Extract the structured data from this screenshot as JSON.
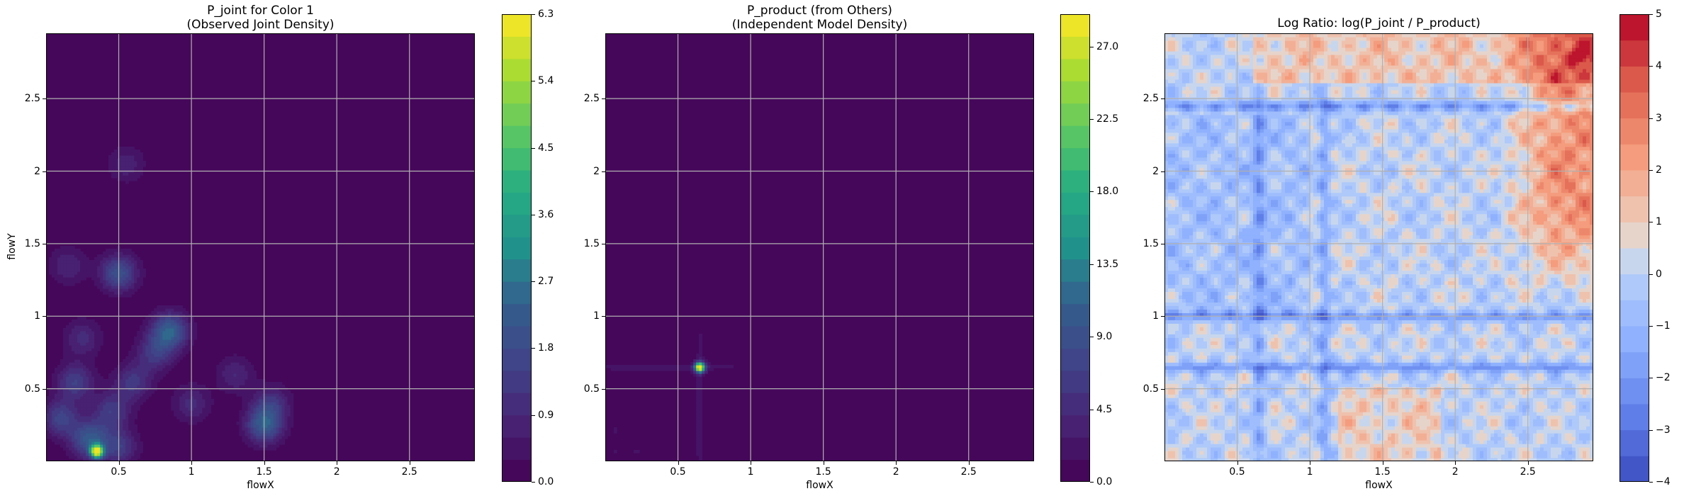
{
  "chart_data": [
    {
      "type": "heatmap",
      "title_lines": [
        "P_joint for Color 1",
        "(Observed Joint Density)"
      ],
      "xlabel": "flowX",
      "ylabel": "flowY",
      "xlim": [
        0.0,
        2.95
      ],
      "ylim": [
        0.0,
        2.95
      ],
      "xticks": [
        0.5,
        1.0,
        1.5,
        2.0,
        2.5
      ],
      "yticks": [
        0.5,
        1.0,
        1.5,
        2.0,
        2.5
      ],
      "grid": true,
      "colormap": "viridis",
      "colorbar": {
        "range": [
          0.0,
          6.3
        ],
        "ticks": [
          "0.0",
          "0.9",
          "1.8",
          "2.7",
          "3.6",
          "4.5",
          "5.4",
          "6.3"
        ],
        "levels": 21
      },
      "background_value": 0.0,
      "hotspots": [
        {
          "x": 0.35,
          "y": 0.07,
          "value": 6.0
        },
        {
          "x": 0.3,
          "y": 0.15,
          "value": 2.2
        },
        {
          "x": 0.5,
          "y": 0.1,
          "value": 1.4
        },
        {
          "x": 0.5,
          "y": 1.3,
          "value": 2.0
        },
        {
          "x": 0.85,
          "y": 0.9,
          "value": 2.4
        },
        {
          "x": 0.75,
          "y": 0.75,
          "value": 1.3
        },
        {
          "x": 1.5,
          "y": 0.25,
          "value": 2.2
        },
        {
          "x": 1.55,
          "y": 0.4,
          "value": 1.2
        },
        {
          "x": 0.2,
          "y": 0.55,
          "value": 1.5
        },
        {
          "x": 0.1,
          "y": 0.3,
          "value": 1.6
        },
        {
          "x": 0.6,
          "y": 0.55,
          "value": 1.3
        },
        {
          "x": 0.25,
          "y": 0.85,
          "value": 1.0
        },
        {
          "x": 1.3,
          "y": 0.6,
          "value": 0.9
        },
        {
          "x": 0.55,
          "y": 2.05,
          "value": 0.8
        },
        {
          "x": 0.15,
          "y": 1.35,
          "value": 0.9
        },
        {
          "x": 1.0,
          "y": 0.4,
          "value": 1.0
        },
        {
          "x": 0.45,
          "y": 0.35,
          "value": 1.4
        }
      ]
    },
    {
      "type": "heatmap",
      "title_lines": [
        "P_product (from Others)",
        "(Independent Model Density)"
      ],
      "xlabel": "flowX",
      "ylabel": "",
      "xlim": [
        0.0,
        2.95
      ],
      "ylim": [
        0.0,
        2.95
      ],
      "xticks": [
        0.5,
        1.0,
        1.5,
        2.0,
        2.5
      ],
      "yticks": [
        0.5,
        1.0,
        1.5,
        2.0,
        2.5
      ],
      "grid": true,
      "colormap": "viridis",
      "colorbar": {
        "range": [
          0.0,
          29.0
        ],
        "ticks": [
          "0.0",
          "4.5",
          "9.0",
          "13.5",
          "18.0",
          "22.5",
          "27.0"
        ],
        "levels": 21
      },
      "background_value": 0.0,
      "peak": {
        "x": 0.65,
        "y": 0.65,
        "value": 28.0
      },
      "ridge_x": 0.65,
      "ridge_y": 0.65,
      "ridge_value": 6.0
    },
    {
      "type": "heatmap",
      "title": "Log Ratio: log(P_joint / P_product)",
      "xlabel": "flowX",
      "ylabel": "",
      "xlim": [
        0.0,
        2.95
      ],
      "ylim": [
        0.0,
        2.95
      ],
      "xticks": [
        0.5,
        1.0,
        1.5,
        2.0,
        2.5
      ],
      "yticks": [
        0.5,
        1.0,
        1.5,
        2.0,
        2.5
      ],
      "grid": true,
      "colormap": "coolwarm",
      "colorbar": {
        "range": [
          -4,
          5
        ],
        "ticks": [
          "−4",
          "−3",
          "−2",
          "−1",
          "0",
          "1",
          "2",
          "3",
          "4",
          "5"
        ],
        "levels": 18
      },
      "blue_bands_y": [
        0.65,
        1.0,
        2.45
      ],
      "blue_bands_x": [
        0.65,
        1.1
      ],
      "red_region": {
        "x_from": 2.3,
        "y_from": 1.1,
        "value": 2.5
      },
      "top_band": {
        "y_from": 2.6,
        "value": 1.5
      },
      "max_point": {
        "x": 2.85,
        "y": 2.8,
        "value": 4.8
      }
    }
  ]
}
